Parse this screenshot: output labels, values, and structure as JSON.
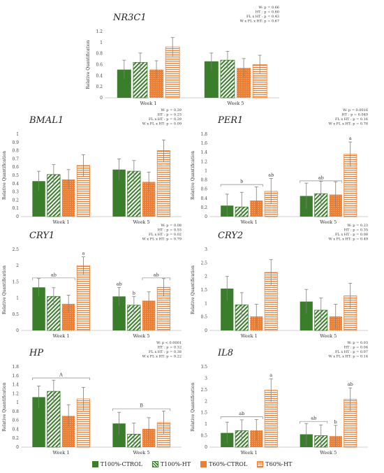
{
  "colors": {
    "green": "#3a7d2a",
    "orange": "#ed7d31",
    "errorbar": "#7f7f7f",
    "axis": "#bfbfbf"
  },
  "legend": [
    {
      "label": "T100%-CTROL",
      "color": "#3a7d2a",
      "pattern": "solid"
    },
    {
      "label": "T100%-HT",
      "color": "#3a7d2a",
      "pattern": "diagonal"
    },
    {
      "label": "T60%-CTROL",
      "color": "#ed7d31",
      "pattern": "dots"
    },
    {
      "label": "T60%-HT",
      "color": "#ed7d31",
      "pattern": "horizontal"
    }
  ],
  "chart_data": [
    {
      "type": "bar",
      "title": "NR3C1",
      "ylabel": "Relative Quantification",
      "categories": [
        "Week 1",
        "Week 5"
      ],
      "ylim": [
        0,
        1.2
      ],
      "yticks": [
        0,
        0.2,
        0.4,
        0.6,
        0.8,
        1,
        1.2
      ],
      "stats": [
        "W: p = 0.66",
        "HT : p = 0.60",
        "FL x HT : p = 0.43",
        "W x FL x HT: p = 0.67"
      ],
      "series": [
        {
          "name": "T100%-CTROL",
          "values": [
            0.51,
            0.66
          ],
          "errors": [
            0.17,
            0.15
          ]
        },
        {
          "name": "T100%-HT",
          "values": [
            0.64,
            0.68
          ],
          "errors": [
            0.17,
            0.16
          ]
        },
        {
          "name": "T60%-CTROL",
          "values": [
            0.51,
            0.54
          ],
          "errors": [
            0.16,
            0.17
          ]
        },
        {
          "name": "T60%-HT",
          "values": [
            0.92,
            0.6
          ],
          "errors": [
            0.17,
            0.17
          ]
        }
      ],
      "bar_labels": [],
      "brackets": []
    },
    {
      "type": "bar",
      "title": "BMAL1",
      "ylabel": "Relative Quantification",
      "categories": [
        "Week 1",
        "Week 5"
      ],
      "ylim": [
        0,
        1
      ],
      "yticks": [
        0,
        0.1,
        0.2,
        0.3,
        0.4,
        0.5,
        0.6,
        0.7,
        0.8,
        0.9,
        1
      ],
      "stats": [
        "W: p = 0.39",
        "HT : p = 0.25",
        "FL x HT : p = 0.29",
        "W x FL x HT: p = 0.09"
      ],
      "series": [
        {
          "name": "T100%-CTROL",
          "values": [
            0.43,
            0.57
          ],
          "errors": [
            0.12,
            0.13
          ]
        },
        {
          "name": "T100%-HT",
          "values": [
            0.51,
            0.55
          ],
          "errors": [
            0.12,
            0.13
          ]
        },
        {
          "name": "T60%-CTROL",
          "values": [
            0.45,
            0.42
          ],
          "errors": [
            0.12,
            0.12
          ]
        },
        {
          "name": "T60%-HT",
          "values": [
            0.62,
            0.8
          ],
          "errors": [
            0.13,
            0.13
          ]
        }
      ],
      "bar_labels": [],
      "brackets": []
    },
    {
      "type": "bar",
      "title": "PER1",
      "ylabel": "Relative Quantification",
      "categories": [
        "Week 1",
        "Week 5"
      ],
      "ylim": [
        0,
        1.8
      ],
      "yticks": [
        0,
        0.2,
        0.4,
        0.6,
        0.8,
        1,
        1.2,
        1.4,
        1.6,
        1.8
      ],
      "stats": [
        "W: p = 0.0016",
        "HT : p = 0.049",
        "FL x HT : p = 0.16",
        "W x FL x HT: p = 0.78"
      ],
      "series": [
        {
          "name": "T100%-CTROL",
          "values": [
            0.24,
            0.45
          ],
          "errors": [
            0.25,
            0.28
          ]
        },
        {
          "name": "T100%-HT",
          "values": [
            0.21,
            0.5
          ],
          "errors": [
            0.32,
            0.27
          ]
        },
        {
          "name": "T60%-CTROL",
          "values": [
            0.35,
            0.48
          ],
          "errors": [
            0.3,
            0.28
          ]
        },
        {
          "name": "T60%-HT",
          "values": [
            0.55,
            1.36
          ],
          "errors": [
            0.28,
            0.27
          ]
        }
      ],
      "bar_labels": [
        {
          "text": "a",
          "series": 3,
          "category": 1
        }
      ],
      "brackets": [
        {
          "text": "b",
          "category": 0,
          "from": 0,
          "to": 2,
          "y": 0.7
        },
        {
          "text": "ab",
          "category": 0,
          "label_series": 3,
          "label_y": 0.88
        },
        {
          "text": "ab",
          "category": 1,
          "from": 0,
          "to": 2,
          "y": 0.78
        }
      ]
    },
    {
      "type": "bar",
      "title": "CRY1",
      "ylabel": "Relative Quantification",
      "categories": [
        "Week 1",
        "Week 5"
      ],
      "ylim": [
        0,
        2.5
      ],
      "yticks": [
        0,
        0.5,
        1,
        1.5,
        2,
        2.5
      ],
      "stats": [
        "W: p = 0.08",
        "HT : p = 0.55",
        "FL x HT : p = 0.02",
        "W x FL x HT: p = 0.79"
      ],
      "series": [
        {
          "name": "T100%-CTROL",
          "values": [
            1.33,
            1.05
          ],
          "errors": [
            0.27,
            0.28
          ]
        },
        {
          "name": "T100%-HT",
          "values": [
            1.05,
            0.78
          ],
          "errors": [
            0.27,
            0.27
          ]
        },
        {
          "name": "T60%-CTROL",
          "values": [
            0.82,
            0.92
          ],
          "errors": [
            0.27,
            0.27
          ]
        },
        {
          "name": "T60%-HT",
          "values": [
            2.0,
            1.33
          ],
          "errors": [
            0.27,
            0.27
          ]
        }
      ],
      "bar_labels": [
        {
          "text": "a",
          "series": 3,
          "category": 0
        },
        {
          "text": "ab",
          "series": 0,
          "category": 1
        },
        {
          "text": "b",
          "series": 1,
          "category": 1
        }
      ],
      "brackets": [
        {
          "text": "ab",
          "category": 0,
          "from": 0,
          "to": 2,
          "y": 1.62
        },
        {
          "text": "ab",
          "category": 1,
          "from": 2,
          "to": 3,
          "y": 1.62
        }
      ]
    },
    {
      "type": "bar",
      "title": "CRY2",
      "ylabel": "Relative Quantification",
      "categories": [
        "Week 1",
        "Week 5"
      ],
      "ylim": [
        0,
        3
      ],
      "yticks": [
        0,
        0.5,
        1,
        1.5,
        2,
        2.5,
        3
      ],
      "stats": [
        "W: p = 0.23",
        "HT : p = 0.35",
        "FL x HT : p = 0.08",
        "W x FL x HT: p = 0.49"
      ],
      "series": [
        {
          "name": "T100%-CTROL",
          "values": [
            1.55,
            1.07
          ],
          "errors": [
            0.45,
            0.45
          ]
        },
        {
          "name": "T100%-HT",
          "values": [
            0.95,
            0.75
          ],
          "errors": [
            0.45,
            0.45
          ]
        },
        {
          "name": "T60%-CTROL",
          "values": [
            0.52,
            0.52
          ],
          "errors": [
            0.45,
            0.45
          ]
        },
        {
          "name": "T60%-HT",
          "values": [
            2.15,
            1.28
          ],
          "errors": [
            0.47,
            0.47
          ]
        }
      ],
      "bar_labels": [],
      "brackets": []
    },
    {
      "type": "bar",
      "title": "HP",
      "ylabel": "Relative Quantification",
      "categories": [
        "Week 1",
        "Week 5"
      ],
      "ylim": [
        0,
        1.8
      ],
      "yticks": [
        0,
        0.2,
        0.4,
        0.6,
        0.8,
        1,
        1.2,
        1.4,
        1.6,
        1.8
      ],
      "stats": [
        "W: p < 0.0001",
        "HT : p = 0.32",
        "FL x HT : p = 0.38",
        "W x FL x HT: p = 0.22"
      ],
      "series": [
        {
          "name": "T100%-CTROL",
          "values": [
            1.12,
            0.53
          ],
          "errors": [
            0.25,
            0.25
          ]
        },
        {
          "name": "T100%-HT",
          "values": [
            1.25,
            0.29
          ],
          "errors": [
            0.25,
            0.25
          ]
        },
        {
          "name": "T60%-CTROL",
          "values": [
            0.7,
            0.41
          ],
          "errors": [
            0.25,
            0.25
          ]
        },
        {
          "name": "T60%-HT",
          "values": [
            1.08,
            0.55
          ],
          "errors": [
            0.26,
            0.26
          ]
        }
      ],
      "bar_labels": [],
      "brackets": [
        {
          "text": "A",
          "category": 0,
          "from": 0,
          "to": 3,
          "y": 1.55
        },
        {
          "text": "B",
          "category": 1,
          "from": 0,
          "to": 3,
          "y": 0.86
        }
      ]
    },
    {
      "type": "bar",
      "title": "IL8",
      "ylabel": "Relative Quantification",
      "categories": [
        "Week 1",
        "Week 5"
      ],
      "ylim": [
        0,
        3.5
      ],
      "yticks": [
        0,
        0.5,
        1,
        1.5,
        2,
        2.5,
        3,
        3.5
      ],
      "stats": [
        "W: p = 0.03",
        "HT : p = 0.04",
        "FL x HT : p = 0.07",
        "W x FL x HT: p = 0.14"
      ],
      "series": [
        {
          "name": "T100%-CTROL",
          "values": [
            0.62,
            0.56
          ],
          "errors": [
            0.47,
            0.47
          ]
        },
        {
          "name": "T100%-HT",
          "values": [
            0.72,
            0.5
          ],
          "errors": [
            0.47,
            0.47
          ]
        },
        {
          "name": "T60%-CTROL",
          "values": [
            0.73,
            0.48
          ],
          "errors": [
            0.47,
            0.47
          ]
        },
        {
          "name": "T60%-HT",
          "values": [
            2.48,
            2.08
          ],
          "errors": [
            0.5,
            0.5
          ]
        }
      ],
      "bar_labels": [
        {
          "text": "a",
          "series": 3,
          "category": 0
        },
        {
          "text": "b",
          "series": 2,
          "category": 1
        },
        {
          "text": "ab",
          "series": 3,
          "category": 1
        }
      ],
      "brackets": [
        {
          "text": "ab",
          "category": 0,
          "from": 0,
          "to": 2,
          "y": 1.32
        },
        {
          "text": "ab",
          "category": 1,
          "from": 0,
          "to": 1,
          "y": 1.12
        }
      ]
    }
  ]
}
